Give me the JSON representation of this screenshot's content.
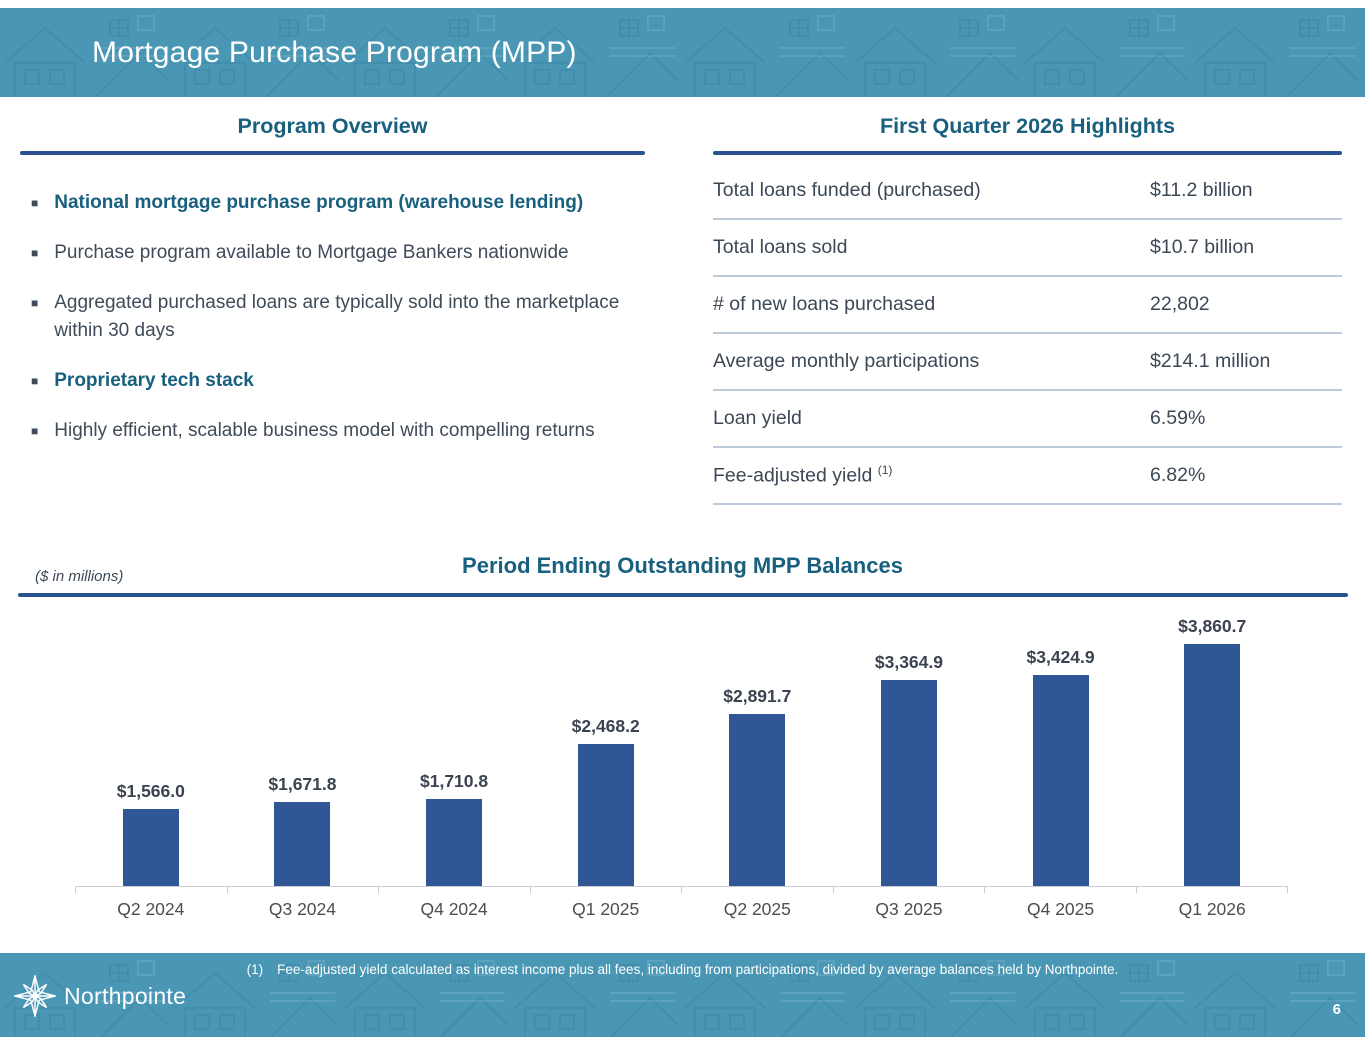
{
  "slide": {
    "title": "Mortgage Purchase Program (MPP)",
    "page_number": "6"
  },
  "program_overview": {
    "heading": "Program Overview",
    "bullets": [
      {
        "text": "National mortgage purchase program (warehouse lending)",
        "emphasis": true
      },
      {
        "text": "Purchase program available to Mortgage Bankers nationwide",
        "emphasis": false
      },
      {
        "text": "Aggregated purchased loans are typically sold into the marketplace within 30 days",
        "emphasis": false
      },
      {
        "text": "Proprietary tech stack",
        "emphasis": true
      },
      {
        "text": "Highly efficient, scalable business model with compelling returns",
        "emphasis": false
      }
    ]
  },
  "highlights": {
    "heading": "First Quarter 2026 Highlights",
    "rows": [
      {
        "label": "Total loans funded (purchased)",
        "value": "$11.2 billion"
      },
      {
        "label": "Total loans sold",
        "value": "$10.7 billion"
      },
      {
        "label": "# of new loans purchased",
        "value": "22,802"
      },
      {
        "label": "Average monthly participations",
        "value": "$214.1 million"
      },
      {
        "label": "Loan yield",
        "value": "6.59%"
      },
      {
        "label": "Fee-adjusted yield",
        "footnote_marker": "(1)",
        "value": "6.82%"
      }
    ]
  },
  "chart_data": {
    "type": "bar",
    "title": "Period Ending Outstanding MPP Balances",
    "units_note": "($ in millions)",
    "categories": [
      "Q2 2024",
      "Q3 2024",
      "Q4 2024",
      "Q1 2025",
      "Q2 2025",
      "Q3 2025",
      "Q4 2025",
      "Q1 2026"
    ],
    "values": [
      1566.0,
      1671.8,
      1710.8,
      2468.2,
      2891.7,
      3364.9,
      3424.9,
      3860.7
    ],
    "labels": [
      "$1,566.0",
      "$1,671.8",
      "$1,710.8",
      "$2,468.2",
      "$2,891.7",
      "$3,364.9",
      "$3,424.9",
      "$3,860.7"
    ],
    "xlabel": "",
    "ylabel": "",
    "ylim": [
      500,
      4000
    ],
    "grid": false,
    "legend_position": "none",
    "bar_color": "#2f5795"
  },
  "footer": {
    "footnote_marker": "(1)",
    "footnote_text": "Fee-adjusted yield calculated as interest income plus all fees, including from participations, divided by average balances held by Northpointe.",
    "logo_text": "Northpointe"
  },
  "colors": {
    "band_teal": "#4997b4",
    "heading_teal": "#19607f",
    "rule_navy": "#2a5290",
    "bar_navy": "#2f5795",
    "body_text": "#3f4b58",
    "divider": "#bccadb"
  }
}
